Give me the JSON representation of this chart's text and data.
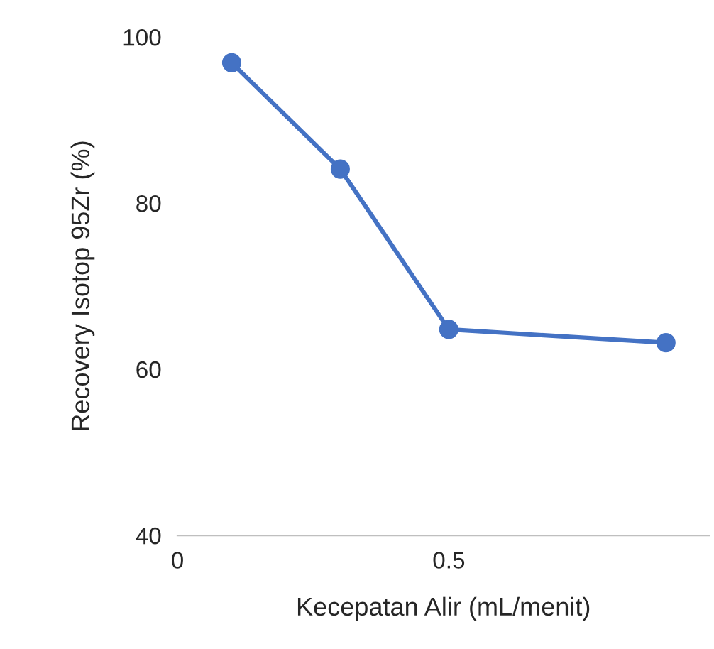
{
  "chart_data": {
    "type": "line",
    "xlabel": "Kecepatan Alir (mL/menit)",
    "ylabel": "Recovery Isotop 95Zr (%)",
    "x": [
      0.1,
      0.3,
      0.5,
      0.9
    ],
    "series": [
      {
        "color": "#4472c4",
        "values": [
          96.9,
          84.1,
          64.8,
          63.2
        ]
      }
    ],
    "xlim": [
      0,
      0.98
    ],
    "xticks": [
      0,
      0.5
    ],
    "ylim": [
      40,
      100
    ],
    "yticks": [
      40,
      60,
      80,
      100
    ],
    "marker": "circle",
    "line_style": "solid",
    "grid": false,
    "legend": false
  }
}
